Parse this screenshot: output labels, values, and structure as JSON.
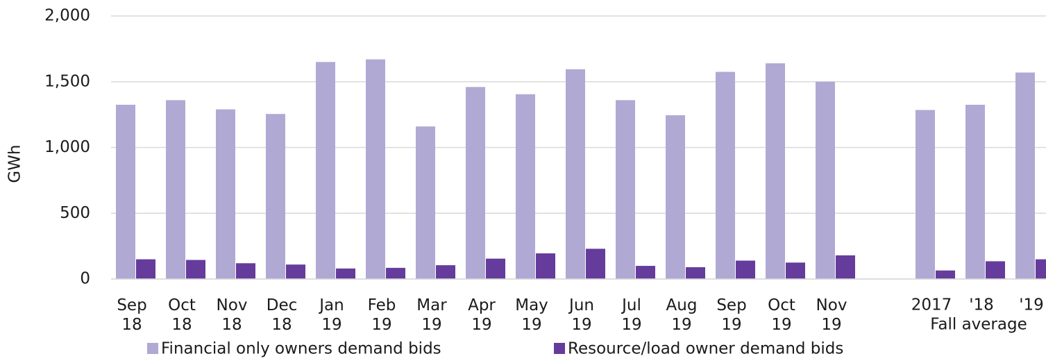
{
  "chart_data": {
    "type": "bar",
    "y_label": "GWh",
    "annotations": [
      "Fall average"
    ],
    "categories": [
      "Sep 18",
      "Oct 18",
      "Nov 18",
      "Dec 18",
      "Jan 19",
      "Feb 19",
      "Mar 19",
      "Apr 19",
      "May 19",
      "Jun 19",
      "Jul 19",
      "Aug 19",
      "Sep 19",
      "Oct 19",
      "Nov 19",
      null,
      "2017",
      "'18",
      "'19"
    ],
    "series": [
      {
        "name": "Financial only owners demand bids",
        "color": "#b0a9d4",
        "values": [
          1325,
          1360,
          1290,
          1255,
          1650,
          1670,
          1160,
          1460,
          1405,
          1595,
          1360,
          1245,
          1575,
          1640,
          1500,
          null,
          1285,
          1325,
          1570
        ]
      },
      {
        "name": "Resource/load owner demand bids",
        "color": "#653c9b",
        "values": [
          150,
          145,
          120,
          110,
          80,
          85,
          105,
          155,
          195,
          230,
          100,
          90,
          140,
          125,
          180,
          null,
          65,
          135,
          150
        ]
      }
    ],
    "ylim": [
      0,
      2000
    ],
    "yticks": [
      0,
      500,
      {
        "value": 1000,
        "label": "1,000"
      },
      {
        "value": 1500,
        "label": "1,500"
      },
      {
        "value": 2000,
        "label": "2,000"
      }
    ],
    "grid": true,
    "legend": "bottom"
  }
}
